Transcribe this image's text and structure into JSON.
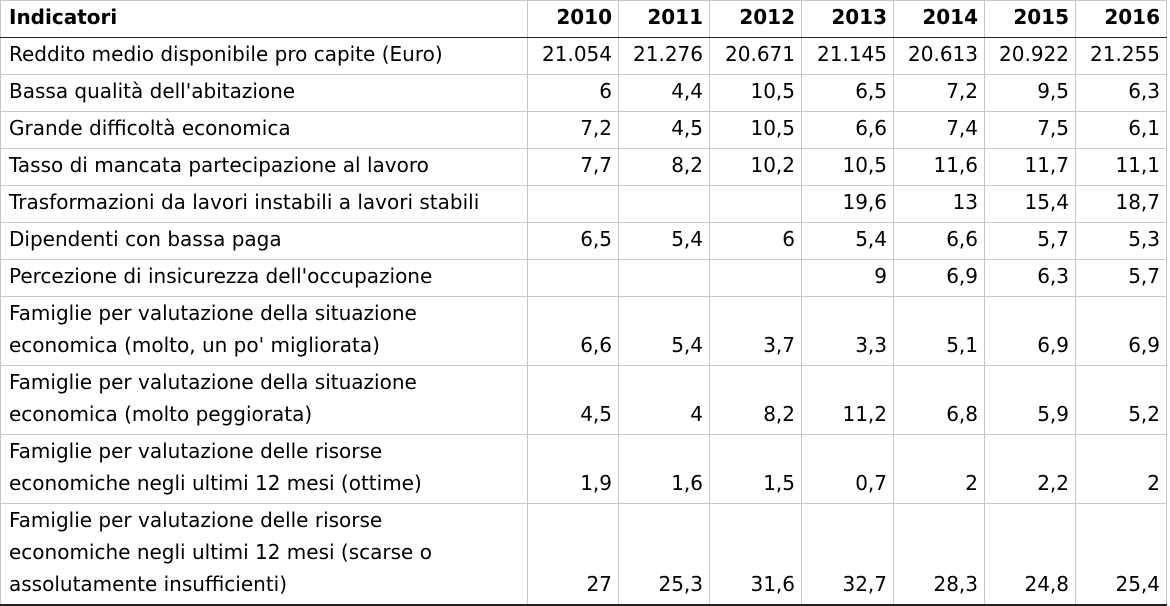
{
  "table": {
    "header": [
      "Indicatori",
      "2010",
      "2011",
      "2012",
      "2013",
      "2014",
      "2015",
      "2016"
    ],
    "rows": [
      {
        "label": [
          "Reddito medio disponibile pro capite (Euro)"
        ],
        "values": [
          "21.054",
          "21.276",
          "20.671",
          "21.145",
          "20.613",
          "20.922",
          "21.255"
        ]
      },
      {
        "label": [
          "Bassa qualità dell'abitazione"
        ],
        "values": [
          "6",
          "4,4",
          "10,5",
          "6,5",
          "7,2",
          "9,5",
          "6,3"
        ]
      },
      {
        "label": [
          "Grande difficoltà economica"
        ],
        "values": [
          "7,2",
          "4,5",
          "10,5",
          "6,6",
          "7,4",
          "7,5",
          "6,1"
        ]
      },
      {
        "label": [
          "Tasso di mancata partecipazione al lavoro"
        ],
        "values": [
          "7,7",
          "8,2",
          "10,2",
          "10,5",
          "11,6",
          "11,7",
          "11,1"
        ]
      },
      {
        "label": [
          "Trasformazioni da lavori instabili a lavori stabili"
        ],
        "values": [
          "",
          "",
          "",
          "19,6",
          "13",
          "15,4",
          "18,7"
        ]
      },
      {
        "label": [
          "Dipendenti con bassa paga"
        ],
        "values": [
          "6,5",
          "5,4",
          "6",
          "5,4",
          "6,6",
          "5,7",
          "5,3"
        ]
      },
      {
        "label": [
          "Percezione di insicurezza dell'occupazione"
        ],
        "values": [
          "",
          "",
          "",
          "9",
          "6,9",
          "6,3",
          "5,7"
        ]
      },
      {
        "label": [
          "Famiglie per valutazione della situazione",
          "economica (molto, un po' migliorata)"
        ],
        "values": [
          "6,6",
          "5,4",
          "3,7",
          "3,3",
          "5,1",
          "6,9",
          "6,9"
        ]
      },
      {
        "label": [
          "Famiglie per valutazione della situazione",
          "economica (molto peggiorata)"
        ],
        "values": [
          "4,5",
          "4",
          "8,2",
          "11,2",
          "6,8",
          "5,9",
          "5,2"
        ]
      },
      {
        "label": [
          "Famiglie per valutazione delle risorse",
          "economiche negli ultimi 12 mesi (ottime)"
        ],
        "values": [
          "1,9",
          "1,6",
          "1,5",
          "0,7",
          "2",
          "2,2",
          "2"
        ]
      },
      {
        "label": [
          "Famiglie per valutazione delle risorse",
          "economiche negli ultimi 12 mesi (scarse o",
          "assolutamente insufficienti)"
        ],
        "values": [
          "27",
          "25,3",
          "31,6",
          "32,7",
          "28,3",
          "24,8",
          "25,4"
        ]
      }
    ]
  }
}
